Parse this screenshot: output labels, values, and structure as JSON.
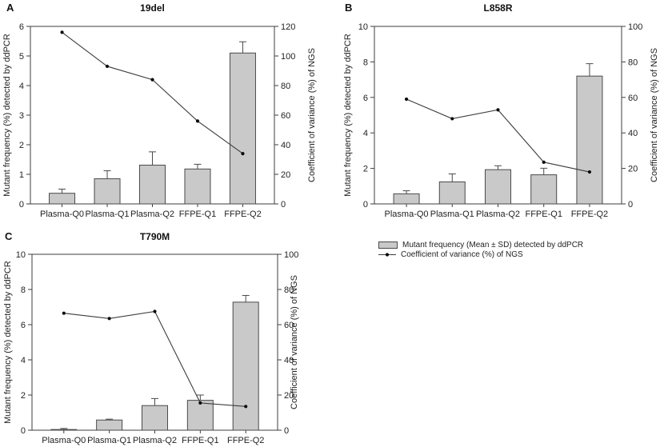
{
  "figure": {
    "background": "#ffffff"
  },
  "colors": {
    "bar_fill": "#c9c9c9",
    "bar_border": "#4a4a4a",
    "axis": "#3d3d3d",
    "line": "#3d3d3d",
    "marker": "#0a0a0a",
    "text": "#1a1a1a"
  },
  "legend": {
    "bar_label": "Mutant frequency (Mean ±  SD) detected by ddPCR",
    "line_label": "Coefficient of variance (%) of NGS"
  },
  "chart_data": [
    {
      "type": "bar+line",
      "panel_letter": "A",
      "title": "19del",
      "categories": [
        "Plasma-Q0",
        "Plasma-Q1",
        "Plasma-Q2",
        "FFPE-Q1",
        "FFPE-Q2"
      ],
      "left_axis": {
        "label": "Mutant frequency (%) detected by ddPCR",
        "min": 0,
        "max": 6,
        "step": 1
      },
      "right_axis": {
        "label": "Coefficient of variance (%) of NGS",
        "min": 0,
        "max": 120,
        "step": 20
      },
      "grid": false,
      "series": [
        {
          "name": "Mutant frequency (Mean ± SD) detected by ddPCR",
          "type": "bar",
          "axis": "left",
          "values": [
            0.36,
            0.85,
            1.31,
            1.18,
            5.1
          ],
          "sd": [
            0.14,
            0.27,
            0.45,
            0.16,
            0.38
          ]
        },
        {
          "name": "Coefficient of variance (%) of NGS",
          "type": "line",
          "axis": "right",
          "values": [
            116,
            93,
            84,
            56,
            34
          ]
        }
      ]
    },
    {
      "type": "bar+line",
      "panel_letter": "B",
      "title": "L858R",
      "categories": [
        "Plasma-Q0",
        "Plasma-Q1",
        "Plasma-Q2",
        "FFPE-Q1",
        "FFPE-Q2"
      ],
      "left_axis": {
        "label": "Mutant frequency (%) detected by ddPCR",
        "min": 0,
        "max": 10,
        "step": 2
      },
      "right_axis": {
        "label": "Coefficient of variance (%) of NGS",
        "min": 0,
        "max": 100,
        "step": 20
      },
      "grid": false,
      "series": [
        {
          "name": "Mutant frequency (Mean ± SD) detected by ddPCR",
          "type": "bar",
          "axis": "left",
          "values": [
            0.57,
            1.24,
            1.93,
            1.64,
            7.2
          ],
          "sd": [
            0.17,
            0.45,
            0.22,
            0.37,
            0.7
          ]
        },
        {
          "name": "Coefficient of variance (%) of NGS",
          "type": "line",
          "axis": "right",
          "values": [
            59,
            48,
            53,
            23.5,
            18
          ]
        }
      ]
    },
    {
      "type": "bar+line",
      "panel_letter": "C",
      "title": "T790M",
      "categories": [
        "Plasma-Q0",
        "Plasma-Q1",
        "Plasma-Q2",
        "FFPE-Q1",
        "FFPE-Q2"
      ],
      "left_axis": {
        "label": "Mutant frequency (%) detected by ddPCR",
        "min": 0,
        "max": 10,
        "step": 2
      },
      "right_axis": {
        "label": "Coefficient of variance (%) of NGS",
        "min": 0,
        "max": 100,
        "step": 20
      },
      "grid": false,
      "series": [
        {
          "name": "Mutant frequency (Mean ± SD) detected by ddPCR",
          "type": "bar",
          "axis": "left",
          "values": [
            0.04,
            0.58,
            1.4,
            1.7,
            7.28
          ],
          "sd": [
            0.06,
            0.05,
            0.4,
            0.3,
            0.38
          ]
        },
        {
          "name": "Coefficient of variance (%) of NGS",
          "type": "line",
          "axis": "right",
          "values": [
            66.5,
            63.5,
            67.5,
            15.5,
            13.5
          ]
        }
      ]
    }
  ]
}
